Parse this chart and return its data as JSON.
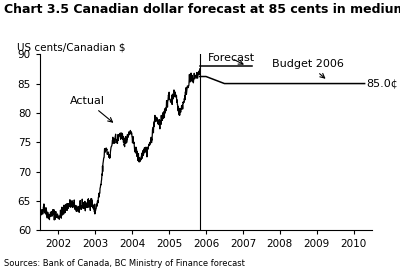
{
  "title": "Chart 3.5 Canadian dollar forecast at 85 cents in medium term",
  "ylabel": "US cents/Canadian $",
  "ylim": [
    60,
    90
  ],
  "yticks": [
    60,
    65,
    70,
    75,
    80,
    85,
    90
  ],
  "xlim_start": 2001.5,
  "xlim_end": 2010.5,
  "xticks": [
    2002,
    2003,
    2004,
    2005,
    2006,
    2007,
    2008,
    2009,
    2010
  ],
  "divider_x": 2005.83,
  "forecast_line": [
    [
      2005.83,
      86.2
    ],
    [
      2006.0,
      86.2
    ],
    [
      2006.5,
      85.0
    ],
    [
      2010.3,
      85.0
    ]
  ],
  "budget2006_line": [
    [
      2005.83,
      88.0
    ],
    [
      2007.25,
      88.0
    ]
  ],
  "source": "Sources: Bank of Canada, BC Ministry of Finance forecast",
  "line_color": "#000000",
  "bg_color": "#ffffff",
  "title_fontsize": 9,
  "label_fontsize": 7.5,
  "tick_fontsize": 7.5,
  "annot_fontsize": 8
}
